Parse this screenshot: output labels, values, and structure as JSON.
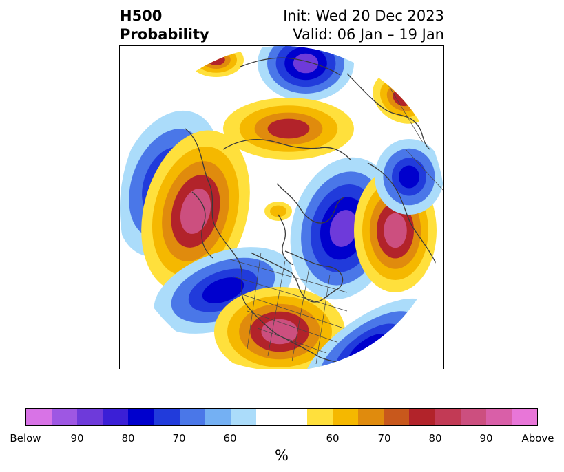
{
  "header": {
    "variable": "H500",
    "product": "Probability",
    "init": "Init: Wed 20 Dec 2023",
    "valid": "Valid: 06 Jan – 19 Jan"
  },
  "colorbar": {
    "colors": [
      "#d873e6",
      "#9e57e3",
      "#6e3ada",
      "#3b1fd6",
      "#0000cd",
      "#213bdb",
      "#4a77e8",
      "#74b0f3",
      "#abdcfa",
      "#ffffff",
      "#ffffff",
      "#ffe03c",
      "#f5b800",
      "#e08b0d",
      "#c8581c",
      "#b2232a",
      "#c23a55",
      "#cc4f7f",
      "#d95fa8",
      "#e876d8"
    ],
    "tick_labels": [
      "Below",
      "90",
      "80",
      "70",
      "60",
      "60",
      "70",
      "80",
      "90",
      "Above"
    ],
    "unit": "%"
  },
  "map_colors": {
    "below_70": "#abdcfa",
    "below_80": "#4a77e8",
    "below_90": "#213bdb",
    "below_max": "#0000cd",
    "below_core": "#6e3ada",
    "above_60": "#ffe03c",
    "above_70": "#f5b800",
    "above_80": "#e08b0d",
    "above_90": "#b2232a",
    "above_core": "#cc4f7f",
    "land_line": "#3a3a3a"
  }
}
